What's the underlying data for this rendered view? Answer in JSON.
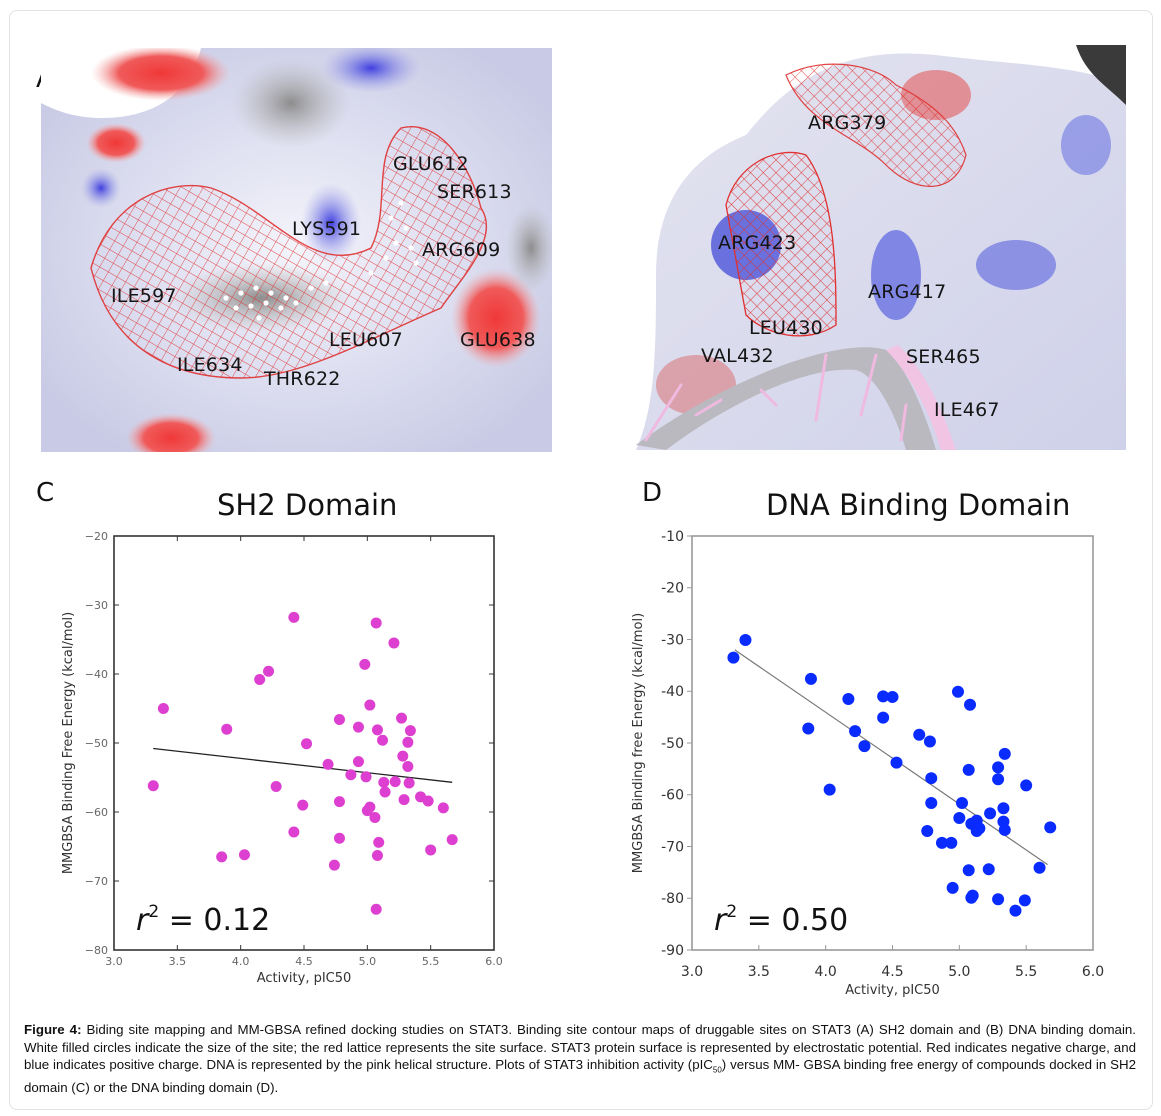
{
  "panels": {
    "A": {
      "letter": "A",
      "labels": [
        "GLU612",
        "SER613",
        "LYS591",
        "ARG609",
        "ILE597",
        "LEU607",
        "GLU638",
        "ILE634",
        "THR622"
      ]
    },
    "B": {
      "letter": "B",
      "labels": [
        "ARG379",
        "ARG423",
        "ARG417",
        "LEU430",
        "VAL432",
        "SER465",
        "ILE467"
      ]
    },
    "C": {
      "letter": "C"
    },
    "D": {
      "letter": "D"
    }
  },
  "colors": {
    "sh2_points": "#dd3fd0",
    "dna_points": "#0a2bff",
    "trend_sh2": "#222222",
    "trend_dna": "#777777",
    "lattice": "#e0302f"
  },
  "chart_data": [
    {
      "type": "scatter",
      "panel": "C",
      "title": "SH2 Domain",
      "xlabel": "Activity, pIC50",
      "ylabel": "MMGBSA Binding Free Energy (kcal/mol)",
      "xlim": [
        3.0,
        6.0
      ],
      "ylim": [
        -80,
        -20
      ],
      "xticks": [
        "3.0",
        "3.5",
        "4.0",
        "4.5",
        "5.0",
        "5.5",
        "6.0"
      ],
      "yticks": [
        "−20",
        "−30",
        "−40",
        "−50",
        "−60",
        "−70",
        "−80"
      ],
      "grid": false,
      "annotation": {
        "r_label": "r",
        "sup": "2",
        "text": " = 0.12"
      },
      "trendline": {
        "x": [
          3.31,
          5.67
        ],
        "y": [
          -50.8,
          -55.7
        ]
      },
      "series": [
        {
          "name": "SH2 domain compounds",
          "x": [
            3.31,
            3.39,
            3.85,
            3.89,
            4.03,
            4.15,
            4.22,
            4.28,
            4.42,
            4.42,
            4.49,
            4.52,
            4.69,
            4.74,
            4.78,
            4.78,
            4.78,
            4.87,
            4.93,
            4.93,
            4.98,
            4.99,
            5.0,
            5.02,
            5.02,
            5.06,
            5.07,
            5.07,
            5.08,
            5.08,
            5.09,
            5.12,
            5.13,
            5.14,
            5.21,
            5.22,
            5.27,
            5.28,
            5.29,
            5.32,
            5.32,
            5.33,
            5.34,
            5.42,
            5.48,
            5.5,
            5.6,
            5.67
          ],
          "y": [
            -56.2,
            -45.0,
            -66.5,
            -48.0,
            -66.2,
            -40.8,
            -39.6,
            -56.3,
            -31.8,
            -62.9,
            -59.0,
            -50.1,
            -53.1,
            -67.7,
            -58.5,
            -46.6,
            -63.8,
            -54.6,
            -47.7,
            -52.7,
            -38.6,
            -54.9,
            -59.8,
            -59.3,
            -44.5,
            -60.8,
            -74.1,
            -32.6,
            -48.1,
            -66.3,
            -64.4,
            -49.6,
            -55.7,
            -57.1,
            -35.5,
            -55.6,
            -46.4,
            -51.9,
            -58.2,
            -49.9,
            -53.4,
            -55.8,
            -48.2,
            -57.8,
            -58.4,
            -65.5,
            -59.4,
            -64.0
          ]
        }
      ]
    },
    {
      "type": "scatter",
      "panel": "D",
      "title": "DNA Binding Domain",
      "xlabel": "Activity, pIC50",
      "ylabel": "MMGBSA Binding free Energy (kcal/mol)",
      "xlim": [
        3.0,
        6.0
      ],
      "ylim": [
        -90,
        -10
      ],
      "xticks": [
        "3.0",
        "3.5",
        "4.0",
        "4.5",
        "5.0",
        "5.5",
        "6.0"
      ],
      "yticks": [
        "-10",
        "-20",
        "-30",
        "-40",
        "-50",
        "-60",
        "-70",
        "-80",
        "-90"
      ],
      "grid": false,
      "annotation": {
        "r_label": "r",
        "sup": "2",
        "text": " = 0.50"
      },
      "trendline": {
        "x": [
          3.32,
          5.66
        ],
        "y": [
          -32.0,
          -73.5
        ]
      },
      "series": [
        {
          "name": "DNA binding domain compounds",
          "x": [
            3.31,
            3.4,
            3.87,
            3.89,
            4.03,
            4.17,
            4.22,
            4.29,
            4.43,
            4.43,
            4.5,
            4.53,
            4.7,
            4.76,
            4.78,
            4.79,
            4.79,
            4.87,
            4.94,
            4.95,
            4.99,
            5.0,
            5.02,
            5.07,
            5.07,
            5.08,
            5.09,
            5.09,
            5.1,
            5.13,
            5.13,
            5.15,
            5.22,
            5.23,
            5.29,
            5.29,
            5.29,
            5.33,
            5.33,
            5.34,
            5.34,
            5.42,
            5.49,
            5.5,
            5.6,
            5.68
          ],
          "y": [
            -33.5,
            -30.1,
            -47.2,
            -37.6,
            -59.0,
            -41.5,
            -47.7,
            -50.6,
            -41.0,
            -45.1,
            -41.1,
            -53.8,
            -48.4,
            -67.0,
            -49.7,
            -56.8,
            -61.6,
            -69.3,
            -69.3,
            -78.0,
            -40.1,
            -64.5,
            -61.6,
            -55.2,
            -74.6,
            -42.6,
            -65.6,
            -79.9,
            -79.5,
            -65.0,
            -67.0,
            -66.5,
            -74.4,
            -63.6,
            -54.7,
            -57.0,
            -80.2,
            -62.6,
            -65.2,
            -66.8,
            -52.1,
            -82.4,
            -80.4,
            -58.2,
            -74.1,
            -66.3
          ]
        }
      ]
    }
  ],
  "caption": {
    "label": "Figure 4:",
    "text_before_sub": " Biding site mapping and MM-GBSA refined docking studies on STAT3. Binding site contour   maps of druggable sites on STAT3 (A) SH2 domain and (B) DNA binding domain. White filled circles  indicate the size of the site; the red lattice represents the site surface. STAT3 protein surface is   represented by electrostatic potential. Red indicates negative charge, and blue indicates positive charge.   DNA is represented by the pink helical structure. Plots of STAT3 inhibition activity (pIC",
    "sub": "50",
    "text_after_sub": ") versus MM-   GBSA binding free energy of compounds docked in SH2 domain (C) or the DNA binding domain (D)."
  }
}
